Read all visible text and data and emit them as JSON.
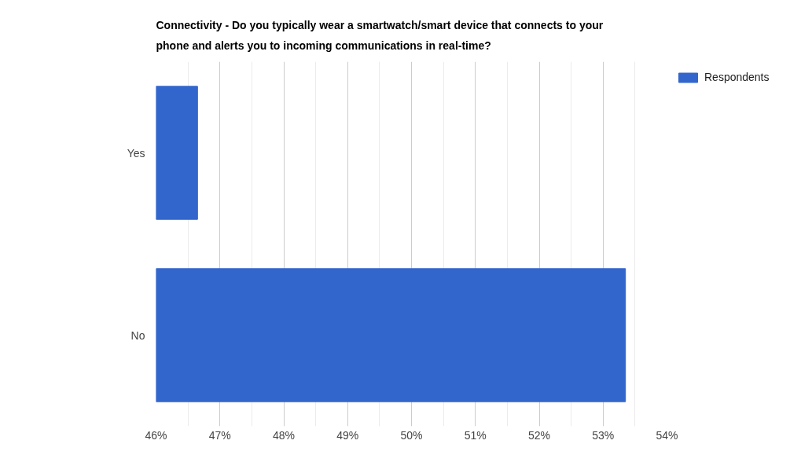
{
  "chart_data": {
    "type": "bar",
    "orientation": "horizontal",
    "title": "Connectivity - Do you typically wear a smartwatch/smart device that connects to your phone and alerts you to incoming communications in real-time?",
    "categories": [
      "Yes",
      "No"
    ],
    "series": [
      {
        "name": "Respondents",
        "color": "#3366cc",
        "values": [
          46.65,
          53.35
        ]
      }
    ],
    "xlim": [
      46,
      54
    ],
    "xticks": [
      {
        "value": 46,
        "label": "46%"
      },
      {
        "value": 46.5,
        "label": null
      },
      {
        "value": 47,
        "label": "47%"
      },
      {
        "value": 47.5,
        "label": null
      },
      {
        "value": 48,
        "label": "48%"
      },
      {
        "value": 48.5,
        "label": null
      },
      {
        "value": 49,
        "label": "49%"
      },
      {
        "value": 49.5,
        "label": null
      },
      {
        "value": 50,
        "label": "50%"
      },
      {
        "value": 50.5,
        "label": null
      },
      {
        "value": 51,
        "label": "51%"
      },
      {
        "value": 51.5,
        "label": null
      },
      {
        "value": 52,
        "label": "52%"
      },
      {
        "value": 52.5,
        "label": null
      },
      {
        "value": 53,
        "label": "53%"
      },
      {
        "value": 53.5,
        "label": null
      },
      {
        "value": 54,
        "label": "54%"
      }
    ],
    "grid": "x",
    "legend": "top right"
  }
}
